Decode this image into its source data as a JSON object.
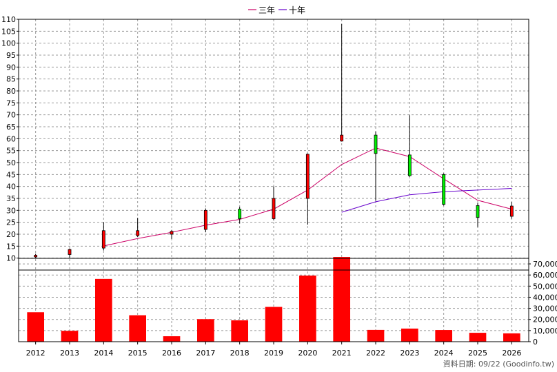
{
  "chart_data": {
    "type": "candlestick+bar",
    "legend": {
      "placement": "top-center",
      "items": [
        {
          "label": "三年",
          "color": "#cc0066"
        },
        {
          "label": "十年",
          "color": "#6600cc"
        }
      ]
    },
    "categories": [
      "2012",
      "2013",
      "2014",
      "2015",
      "2016",
      "2017",
      "2018",
      "2019",
      "2020",
      "2021",
      "2022",
      "2023",
      "2024",
      "2025",
      "2026"
    ],
    "price_axis": {
      "ylim": [
        5,
        110
      ],
      "ticks": [
        "10",
        "15",
        "20",
        "25",
        "30",
        "35",
        "40",
        "45",
        "50",
        "55",
        "60",
        "65",
        "70",
        "75",
        "80",
        "85",
        "90",
        "95",
        "100",
        "105",
        "110"
      ]
    },
    "candles": [
      {
        "year": "2012",
        "open": 10.5,
        "high": 11.8,
        "low": 9.8,
        "close": 11.2
      },
      {
        "year": "2013",
        "open": 11.5,
        "high": 13.9,
        "low": 10.2,
        "close": 13.6
      },
      {
        "year": "2014",
        "open": 14.2,
        "high": 25,
        "low": 13.2,
        "close": 21.5
      },
      {
        "year": "2015",
        "open": 19.4,
        "high": 26.8,
        "low": 18.8,
        "close": 21.5
      },
      {
        "year": "2016",
        "open": 20,
        "high": 21.8,
        "low": 18,
        "close": 21.2
      },
      {
        "year": "2017",
        "open": 22,
        "high": 30.8,
        "low": 20.8,
        "close": 30
      },
      {
        "year": "2018",
        "open": 30.5,
        "high": 31.5,
        "low": 24.5,
        "close": 26.5
      },
      {
        "year": "2019",
        "open": 26.5,
        "high": 40,
        "low": 25.8,
        "close": 35
      },
      {
        "year": "2020",
        "open": 35,
        "high": 53.8,
        "low": 24,
        "close": 53.5
      },
      {
        "year": "2021",
        "open": 59,
        "high": 108,
        "low": 58.8,
        "close": 61.5
      },
      {
        "year": "2022",
        "open": 61.5,
        "high": 63,
        "low": 34,
        "close": 53.8
      },
      {
        "year": "2023",
        "open": 53.2,
        "high": 69.8,
        "low": 44,
        "close": 44.5
      },
      {
        "year": "2024",
        "open": 45,
        "high": 45.5,
        "low": 32,
        "close": 32.5
      },
      {
        "year": "2025",
        "open": 32,
        "high": 33,
        "low": 23,
        "close": 27
      },
      {
        "year": "2026",
        "open": 27.5,
        "high": 33.5,
        "low": 26.5,
        "close": 31.8
      }
    ],
    "series": [
      {
        "name": "三年",
        "color": "#cc0066",
        "points": [
          [
            "2014",
            15.1
          ],
          [
            "2015",
            18.2
          ],
          [
            "2016",
            20.8
          ],
          [
            "2017",
            23.8
          ],
          [
            "2018",
            26.2
          ],
          [
            "2019",
            30.5
          ],
          [
            "2020",
            38.5
          ],
          [
            "2021",
            49.2
          ],
          [
            "2022",
            56.1
          ],
          [
            "2023",
            52.5
          ],
          [
            "2024",
            43.2
          ],
          [
            "2025",
            34.2
          ],
          [
            "2026",
            30.5
          ]
        ]
      },
      {
        "name": "十年",
        "color": "#6600cc",
        "points": [
          [
            "2021",
            29.2
          ],
          [
            "2022",
            33.6
          ],
          [
            "2023",
            36.5
          ],
          [
            "2024",
            37.8
          ],
          [
            "2025",
            38.5
          ],
          [
            "2026",
            39.2
          ]
        ]
      }
    ],
    "volume_axis": {
      "ylim": [
        0,
        75000
      ],
      "ticks": [
        "0",
        "10,000",
        "20,000",
        "30,000",
        "40,000",
        "50,000",
        "60,000",
        "70,000"
      ]
    },
    "volume": [
      26500,
      9800,
      56500,
      23800,
      4900,
      20300,
      19200,
      31300,
      59500,
      76200,
      10600,
      11800,
      10500,
      8000,
      7500
    ],
    "colors": {
      "up": "#ff0000",
      "down": "#00ee00",
      "bar": "#ff0000",
      "grid": "#999999"
    },
    "footer": "資料日期: 09/22  (Goodinfo.tw)"
  }
}
